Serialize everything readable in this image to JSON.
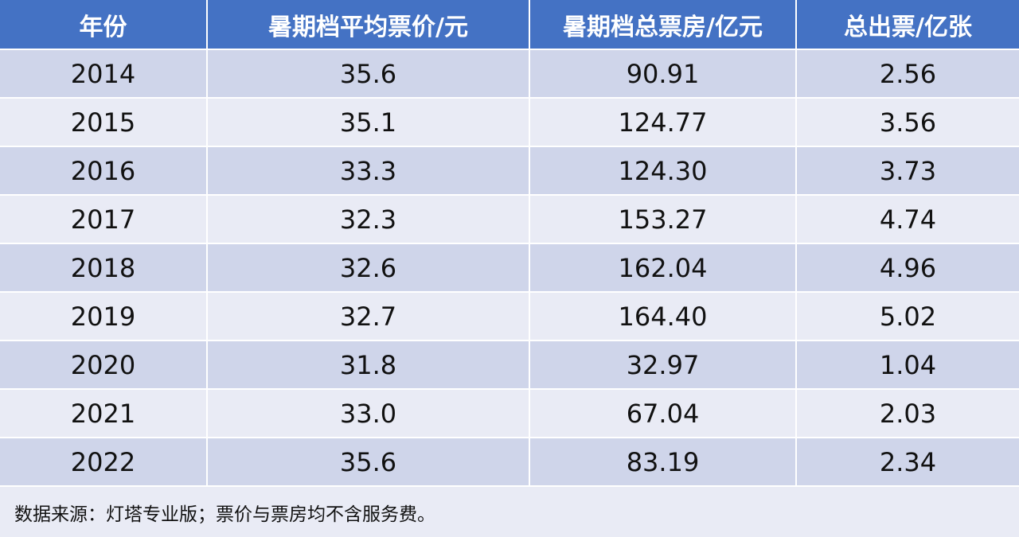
{
  "table": {
    "header": [
      "年份",
      "暑期档平均票价/元",
      "暑期档总票房/亿元",
      "总出票/亿张"
    ],
    "rows": [
      [
        "2014",
        "35.6",
        "90.91",
        "2.56"
      ],
      [
        "2015",
        "35.1",
        "124.77",
        "3.56"
      ],
      [
        "2016",
        "33.3",
        "124.30",
        "3.73"
      ],
      [
        "2017",
        "32.3",
        "153.27",
        "4.74"
      ],
      [
        "2018",
        "32.6",
        "162.04",
        "4.96"
      ],
      [
        "2019",
        "32.7",
        "164.40",
        "5.02"
      ],
      [
        "2020",
        "31.8",
        "32.97",
        "1.04"
      ],
      [
        "2021",
        "33.0",
        "67.04",
        "2.03"
      ],
      [
        "2022",
        "35.6",
        "83.19",
        "2.34"
      ]
    ],
    "note": "数据来源：灯塔专业版；票价与票房均不含服务费。"
  }
}
